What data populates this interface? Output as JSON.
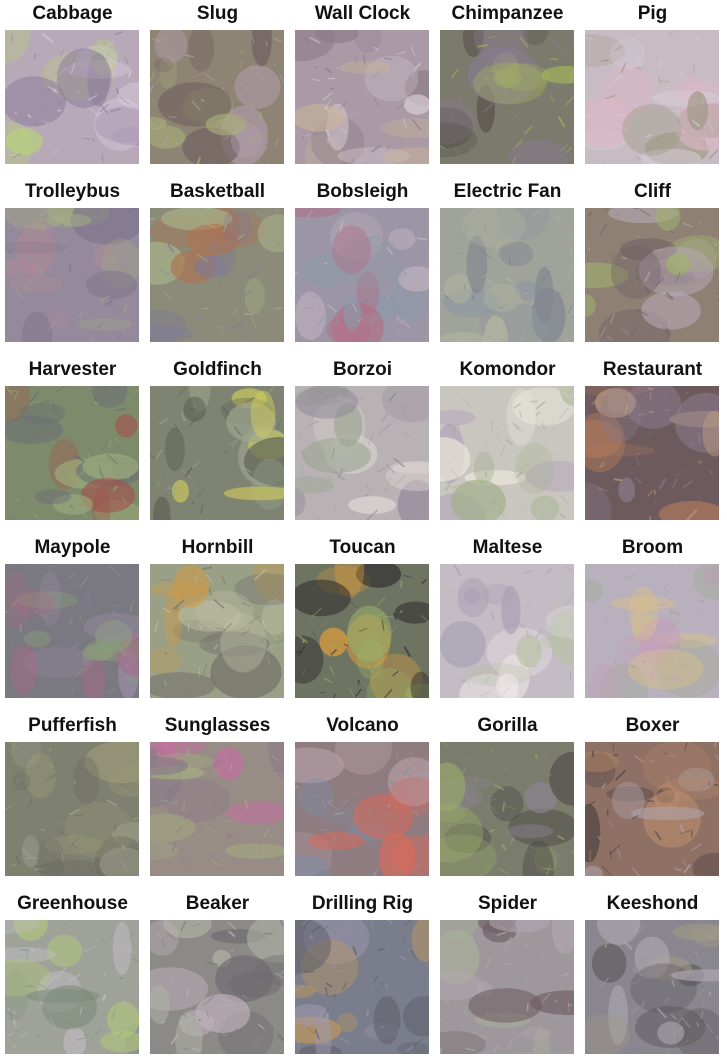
{
  "grid": {
    "columns": 5,
    "items": [
      {
        "label": "Cabbage",
        "icon": "cabbage-image",
        "palette": [
          "#b8a9b8",
          "#b7d27a",
          "#8e7d9a",
          "#d8cce0"
        ]
      },
      {
        "label": "Slug",
        "icon": "slug-image",
        "palette": [
          "#8d8474",
          "#6d5c5c",
          "#a8b07a",
          "#b59fb0"
        ]
      },
      {
        "label": "Wall Clock",
        "icon": "wall-clock-image",
        "palette": [
          "#a99aa6",
          "#c9b497",
          "#8c7c88",
          "#dcd2d6"
        ]
      },
      {
        "label": "Chimpanzee",
        "icon": "chimpanzee-image",
        "palette": [
          "#7b7a6c",
          "#4f4a46",
          "#a7b85c",
          "#8c7c9a"
        ]
      },
      {
        "label": "Pig",
        "icon": "pig-image",
        "palette": [
          "#c7bcc4",
          "#e0b4c6",
          "#9f9a86",
          "#d6cfd8"
        ]
      },
      {
        "label": "Trolleybus",
        "icon": "trolleybus-image",
        "palette": [
          "#958a9c",
          "#b08a96",
          "#a3ae83",
          "#7f768c"
        ]
      },
      {
        "label": "Basketball",
        "icon": "basketball-image",
        "palette": [
          "#8c8a78",
          "#b0704e",
          "#7e7a9a",
          "#a7b48a"
        ]
      },
      {
        "label": "Bobsleigh",
        "icon": "bobsleigh-image",
        "palette": [
          "#9c95a6",
          "#b26f86",
          "#8c9aa8",
          "#c4b4c0"
        ]
      },
      {
        "label": "Electric Fan",
        "icon": "electric-fan-image",
        "palette": [
          "#a0a39a",
          "#8c96a4",
          "#b6b8a0",
          "#7e8490"
        ]
      },
      {
        "label": "Cliff",
        "icon": "cliff-image",
        "palette": [
          "#8f8074",
          "#a0b46c",
          "#6d5f62",
          "#b6a8b4"
        ]
      },
      {
        "label": "Harvester",
        "icon": "harvester-image",
        "palette": [
          "#7e8a6c",
          "#a44e4a",
          "#6a6c74",
          "#9fb07c"
        ]
      },
      {
        "label": "Goldfinch",
        "icon": "goldfinch-image",
        "palette": [
          "#7f8472",
          "#d4d05a",
          "#5a5e52",
          "#9ea890"
        ]
      },
      {
        "label": "Borzoi",
        "icon": "borzoi-image",
        "palette": [
          "#b8b2b4",
          "#e2dcd8",
          "#9ea894",
          "#8e8698"
        ]
      },
      {
        "label": "Komondor",
        "icon": "komondor-image",
        "palette": [
          "#c9c6c0",
          "#ece8dc",
          "#a2b08c",
          "#b0a0b8"
        ]
      },
      {
        "label": "Restaurant",
        "icon": "restaurant-image",
        "palette": [
          "#6d5a5c",
          "#b07a5c",
          "#8a7c90",
          "#c4a284"
        ]
      },
      {
        "label": "Maypole",
        "icon": "maypole-image",
        "palette": [
          "#7a7880",
          "#a86a86",
          "#8ca07a",
          "#9a8ea6"
        ]
      },
      {
        "label": "Hornbill",
        "icon": "hornbill-image",
        "palette": [
          "#9aa086",
          "#d09a44",
          "#6e6a66",
          "#c4c4a8"
        ]
      },
      {
        "label": "Toucan",
        "icon": "toucan-image",
        "palette": [
          "#6e7462",
          "#e4a03a",
          "#2e2c2e",
          "#9cb46c"
        ]
      },
      {
        "label": "Maltese",
        "icon": "maltese-image",
        "palette": [
          "#c4bcc4",
          "#ece6e6",
          "#a8a0b4",
          "#b8c0a4"
        ]
      },
      {
        "label": "Broom",
        "icon": "broom-image",
        "palette": [
          "#b8b0bc",
          "#d8c08a",
          "#c89cc0",
          "#9aaa8c"
        ]
      },
      {
        "label": "Pufferfish",
        "icon": "pufferfish-image",
        "palette": [
          "#7e8070",
          "#9c9a78",
          "#6c6c64",
          "#a8a692"
        ]
      },
      {
        "label": "Sunglasses",
        "icon": "sunglasses-image",
        "palette": [
          "#988c86",
          "#c46ea0",
          "#a6b080",
          "#8a7a8a"
        ]
      },
      {
        "label": "Volcano",
        "icon": "volcano-image",
        "palette": [
          "#8e7c80",
          "#d86a5a",
          "#7a8ea6",
          "#b8a0a8"
        ]
      },
      {
        "label": "Gorilla",
        "icon": "gorilla-image",
        "palette": [
          "#7a7c6c",
          "#4c4a48",
          "#9cae6a",
          "#8e8494"
        ]
      },
      {
        "label": "Boxer",
        "icon": "boxer-image",
        "palette": [
          "#8e7064",
          "#b88a6c",
          "#4e4242",
          "#b0a4ac"
        ]
      },
      {
        "label": "Greenhouse",
        "icon": "greenhouse-image",
        "palette": [
          "#9ea298",
          "#b0c47c",
          "#c8c0cc",
          "#7c8a7a"
        ]
      },
      {
        "label": "Beaker",
        "icon": "beaker-image",
        "palette": [
          "#8c8a86",
          "#b2b6a8",
          "#6e6a70",
          "#c0b2be"
        ]
      },
      {
        "label": "Drilling Rig",
        "icon": "drilling-rig-image",
        "palette": [
          "#7a7e8c",
          "#c89a54",
          "#5c5c66",
          "#a09ab0"
        ]
      },
      {
        "label": "Spider",
        "icon": "spider-image",
        "palette": [
          "#9e989c",
          "#6e5e62",
          "#b4a8b4",
          "#a8b09a"
        ]
      },
      {
        "label": "Keeshond",
        "icon": "keeshond-image",
        "palette": [
          "#8a8690",
          "#5e5a5e",
          "#b0aab4",
          "#a09c84"
        ]
      }
    ]
  }
}
